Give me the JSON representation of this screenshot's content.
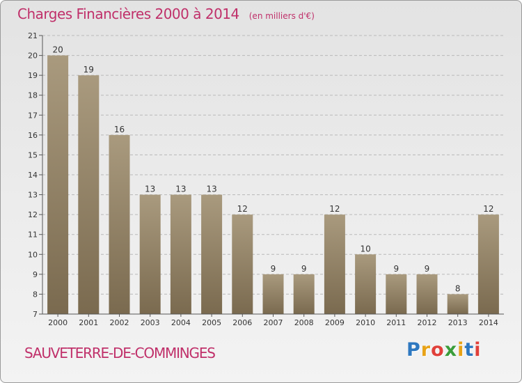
{
  "header": {
    "title": "Charges Financières 2000 à 2014",
    "unit": "(en milliers d'€)"
  },
  "footer": {
    "commune": "SAUVETERRE-DE-COMMINGES",
    "logo": {
      "letters": [
        "P",
        "r",
        "o",
        "x",
        "i",
        "t",
        "i"
      ],
      "colors": [
        "#2e78c0",
        "#e8a317",
        "#e0403a",
        "#3a9d3a",
        "#e8a317",
        "#2e78c0",
        "#e0403a"
      ]
    }
  },
  "colors": {
    "title": "#c0306a",
    "bar_light": "#a99a7e",
    "bar_dark": "#7a6a4f",
    "grid": "#b9b9b9"
  },
  "chart_data": {
    "type": "bar",
    "title": "Charges Financières 2000 à 2014",
    "subtitle": "(en milliers d'€)",
    "categories": [
      "2000",
      "2001",
      "2002",
      "2003",
      "2004",
      "2005",
      "2006",
      "2007",
      "2008",
      "2009",
      "2010",
      "2011",
      "2012",
      "2013",
      "2014"
    ],
    "values": [
      20,
      19,
      16,
      13,
      13,
      13,
      12,
      9,
      9,
      12,
      10,
      9,
      9,
      8,
      12
    ],
    "ylim": [
      7,
      21
    ],
    "yticks": [
      7,
      8,
      9,
      10,
      11,
      12,
      13,
      14,
      15,
      16,
      17,
      18,
      19,
      20,
      21
    ],
    "grid": "horizontal-dashed",
    "legend": "none"
  }
}
